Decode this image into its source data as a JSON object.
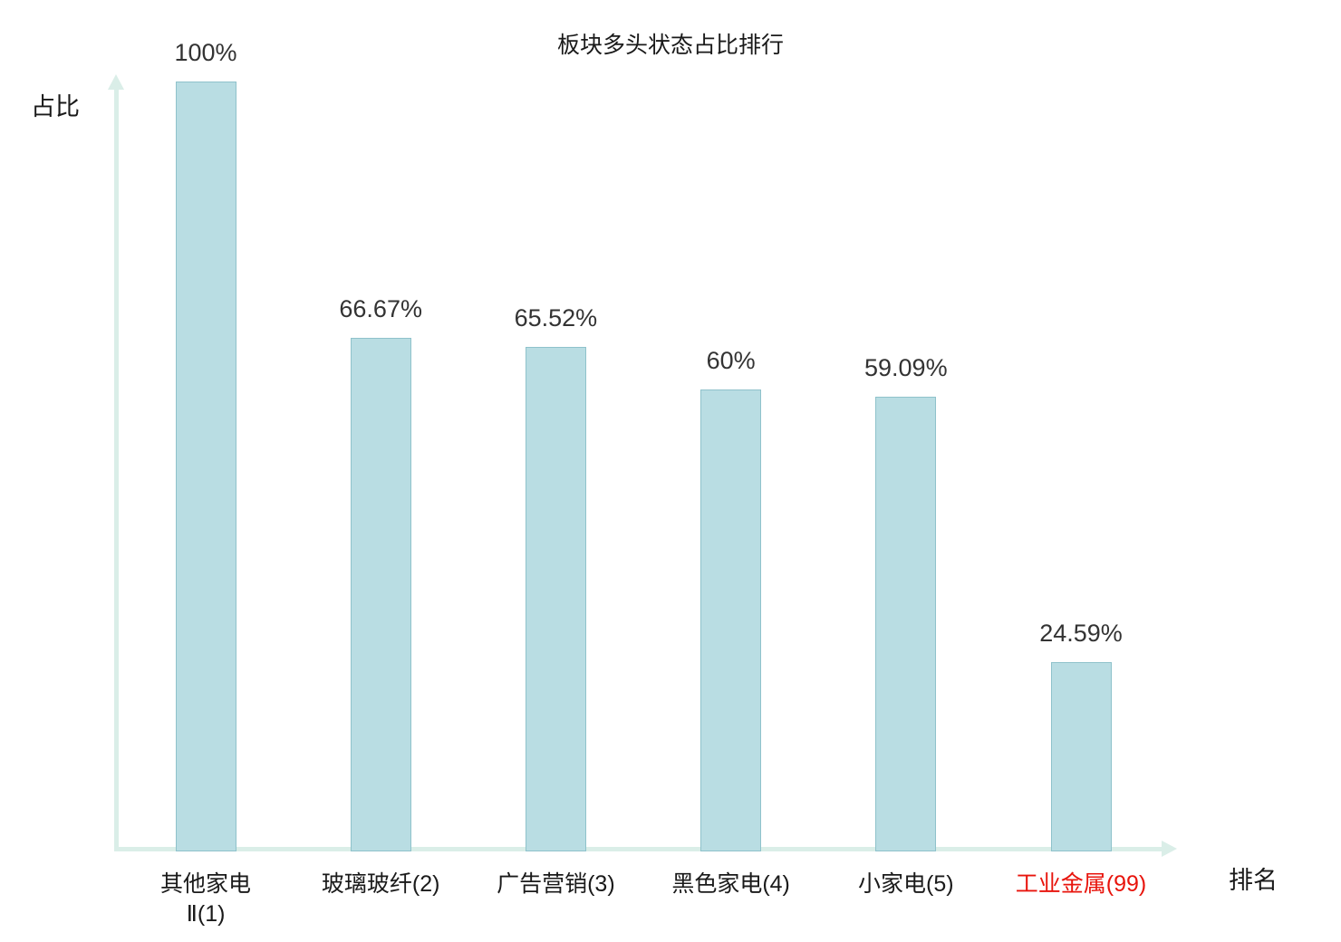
{
  "chart_data": {
    "type": "bar",
    "title": "板块多头状态占比排行",
    "xlabel": "排名",
    "ylabel": "占比",
    "categories": [
      "其他家电\nⅡ(1)",
      "玻璃玻纤(2)",
      "广告营销(3)",
      "黑色家电(4)",
      "小家电(5)",
      "工业金属(99)"
    ],
    "values": [
      100,
      66.67,
      65.52,
      60,
      59.09,
      24.59
    ],
    "value_labels": [
      "100%",
      "66.67%",
      "65.52%",
      "60%",
      "59.09%",
      "24.59%"
    ],
    "category_colors": [
      "#1a1a1a",
      "#1a1a1a",
      "#1a1a1a",
      "#1a1a1a",
      "#1a1a1a",
      "#e8140c"
    ],
    "ylim": [
      0,
      100
    ],
    "grid": false,
    "legend": "none",
    "bar_color": "#b9dde3",
    "bar_border_color": "#8fc2cb",
    "axis_color": "#daeee8",
    "value_label_color": "#333333"
  }
}
